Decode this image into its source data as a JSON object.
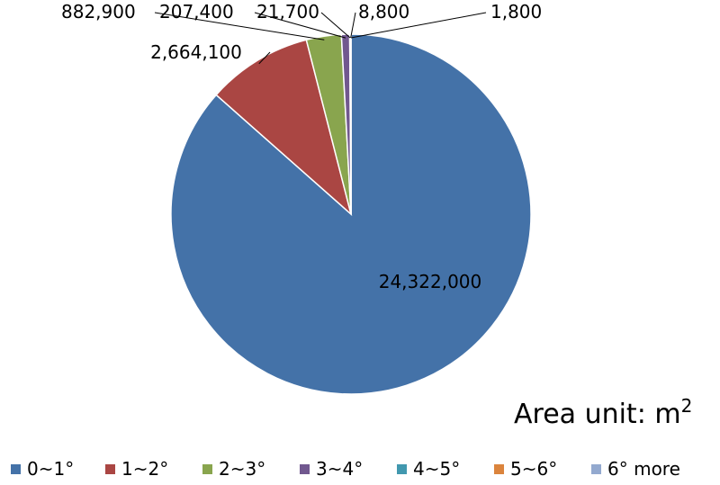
{
  "chart_data": {
    "type": "pie",
    "categories": [
      "0~1°",
      "1~2°",
      "2~3°",
      "3~4°",
      "4~5°",
      "5~6°",
      "6° more"
    ],
    "values": [
      24322000,
      2664100,
      882900,
      207400,
      21700,
      8800,
      1800
    ],
    "value_labels": [
      "24,322,000",
      "2,664,100",
      "882,900",
      "207,400",
      "21,700",
      "8,800",
      "1,800"
    ],
    "colors": [
      "#4472A8",
      "#AA4643",
      "#89A54E",
      "#71588F",
      "#4198AF",
      "#DB843D",
      "#93A9CF"
    ],
    "start_angle_deg": 0,
    "direction": "clockwise",
    "legend_position": "bottom",
    "annotation": {
      "text": "Area unit: m",
      "superscript": "2"
    }
  }
}
